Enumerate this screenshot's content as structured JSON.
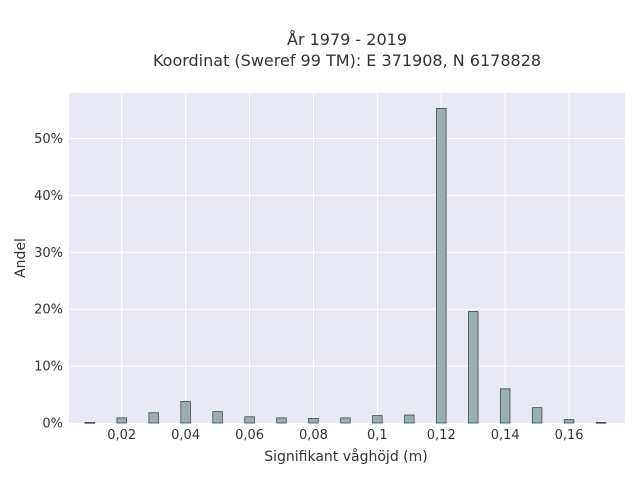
{
  "chart_data": {
    "type": "bar",
    "title_lines": [
      "År 1979 - 2019",
      "Koordinat (Sweref 99 TM): E 371908, N 6178828"
    ],
    "xlabel": "Signifikant våghöjd (m)",
    "ylabel": "Andel",
    "x_ticks": [
      0.02,
      0.04,
      0.06,
      0.08,
      0.1,
      0.12,
      0.14,
      0.16
    ],
    "x_tick_labels": [
      "0,02",
      "0,04",
      "0,06",
      "0,08",
      "0,1",
      "0,12",
      "0,14",
      "0,16"
    ],
    "y_ticks": [
      0,
      10,
      20,
      30,
      40,
      50
    ],
    "y_tick_labels": [
      "0%",
      "10%",
      "20%",
      "30%",
      "40%",
      "50%"
    ],
    "xlim": [
      0.0035,
      0.1775
    ],
    "ylim": [
      0,
      58
    ],
    "bar_width": 0.003,
    "x": [
      0.01,
      0.02,
      0.03,
      0.04,
      0.05,
      0.06,
      0.07,
      0.08,
      0.09,
      0.1,
      0.11,
      0.12,
      0.13,
      0.14,
      0.15,
      0.16,
      0.17
    ],
    "values": [
      0.1,
      0.9,
      1.8,
      3.8,
      2.0,
      1.1,
      0.9,
      0.8,
      0.9,
      1.3,
      1.4,
      55.3,
      19.6,
      6.0,
      2.7,
      0.6,
      0.1
    ],
    "grid": true,
    "colors": {
      "plot_bg": "#e8e9f2",
      "grid": "#ffffff",
      "bar_fill": "#9aafaf",
      "bar_stroke": "#3d4a4a"
    }
  }
}
